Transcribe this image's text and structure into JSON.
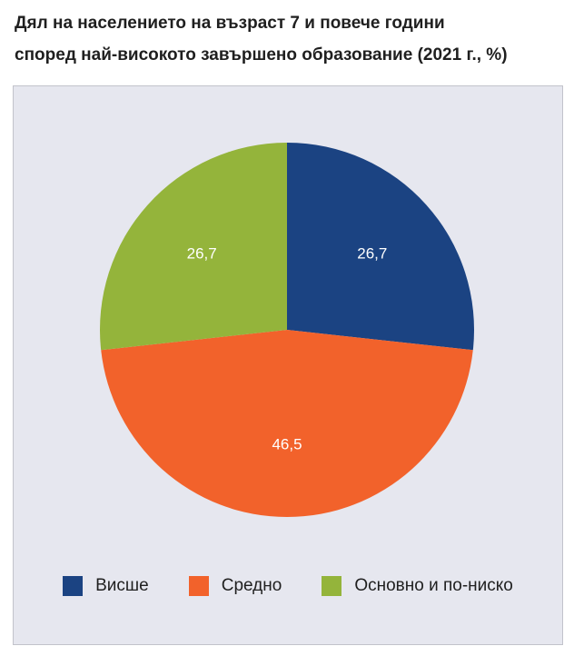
{
  "chart_data": {
    "type": "pie",
    "title": "Дял на населението на възраст 7 и повече години според най-високото завършено образование (2021 г., %)",
    "title_lines": [
      "Дял на населението на възраст 7 и повече години",
      "според най-високото завършено образование (2021 г., %)"
    ],
    "categories": [
      "Висше",
      "Средно",
      "Основно и по-ниско"
    ],
    "values": [
      26.7,
      46.5,
      26.7
    ],
    "value_labels": [
      "26,7",
      "46,5",
      "26,7"
    ],
    "colors": [
      "#1b4382",
      "#f2622b",
      "#94b43b"
    ],
    "start_angle_deg": 0,
    "direction": "clockwise",
    "legend_position": "bottom",
    "background": "#e6e7ef"
  }
}
